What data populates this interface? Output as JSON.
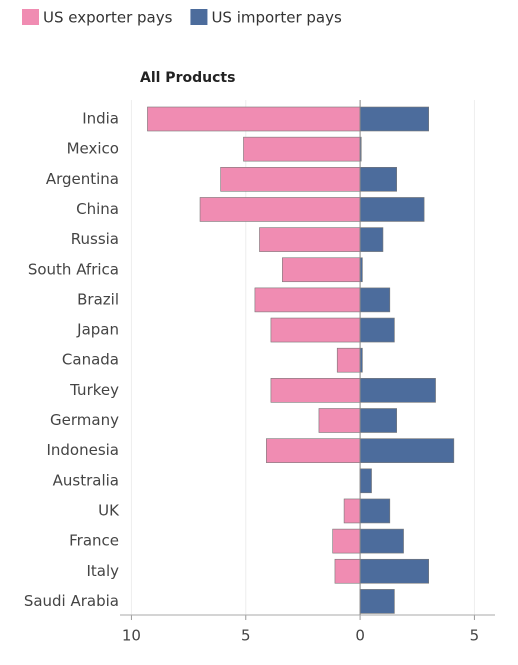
{
  "chart_data": {
    "type": "bar",
    "orientation": "horizontal",
    "title": "All Products",
    "categories": [
      "India",
      "Mexico",
      "Argentina",
      "China",
      "Russia",
      "South Africa",
      "Brazil",
      "Japan",
      "Canada",
      "Turkey",
      "Germany",
      "Indonesia",
      "Australia",
      "UK",
      "France",
      "Italy",
      "Saudi Arabia"
    ],
    "series": [
      {
        "name": "US exporter pays",
        "color": "#f08cb2",
        "values": [
          -9.3,
          -5.1,
          -6.1,
          -7.0,
          -4.4,
          -3.4,
          -4.6,
          -3.9,
          -1.0,
          -3.9,
          -1.8,
          -4.1,
          0,
          -0.7,
          -1.2,
          -1.1,
          0
        ]
      },
      {
        "name": "US importer pays",
        "color": "#4c6c9c",
        "values": [
          3.0,
          0.05,
          1.6,
          2.8,
          1.0,
          0.1,
          1.3,
          1.5,
          0.1,
          3.3,
          1.6,
          4.1,
          0.5,
          1.3,
          1.9,
          3.0,
          1.5
        ]
      }
    ],
    "xlim": [
      -10.5,
      5.9
    ],
    "xticks": [
      {
        "value": -10,
        "label": "10"
      },
      {
        "value": -5,
        "label": "5"
      },
      0,
      5
    ],
    "grid": true
  }
}
